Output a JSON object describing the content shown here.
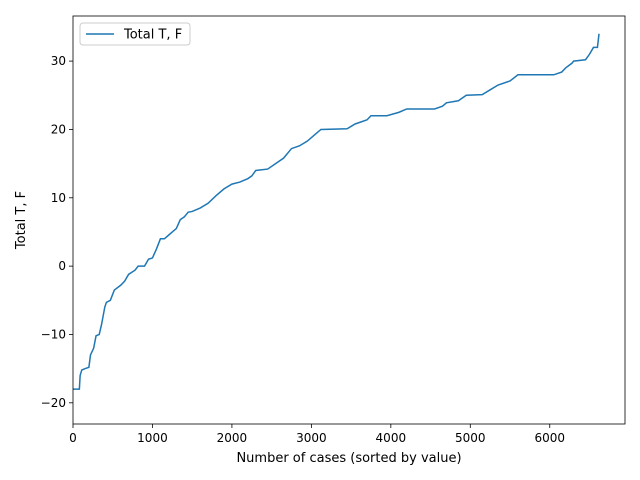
{
  "chart_data": {
    "type": "line",
    "xlabel": "Number of cases (sorted by value)",
    "ylabel": "Total T, F",
    "x": [
      0,
      80,
      90,
      110,
      150,
      200,
      220,
      260,
      290,
      330,
      360,
      400,
      420,
      470,
      520,
      600,
      650,
      700,
      780,
      820,
      900,
      950,
      1000,
      1050,
      1100,
      1150,
      1200,
      1250,
      1300,
      1350,
      1400,
      1450,
      1500,
      1600,
      1700,
      1800,
      1900,
      2000,
      2100,
      2200,
      2250,
      2300,
      2450,
      2550,
      2650,
      2750,
      2850,
      2950,
      3050,
      3120,
      3450,
      3550,
      3700,
      3750,
      3950,
      4100,
      4200,
      4550,
      4650,
      4700,
      4850,
      4950,
      5150,
      5250,
      5350,
      5500,
      5600,
      6050,
      6150,
      6200,
      6280,
      6300,
      6450,
      6500,
      6550,
      6600,
      6610,
      6620
    ],
    "series": [
      {
        "name": "Total T, F",
        "color": "#1f77b4",
        "values": [
          -18,
          -18,
          -16,
          -15.2,
          -15,
          -14.8,
          -13,
          -12,
          -10.2,
          -10,
          -8.5,
          -6,
          -5.3,
          -5,
          -3.5,
          -2.8,
          -2.2,
          -1.2,
          -0.6,
          0,
          0,
          1,
          1.2,
          2.5,
          4,
          4,
          4.5,
          5,
          5.5,
          6.8,
          7.2,
          7.9,
          8,
          8.5,
          9.2,
          10.3,
          11.3,
          12,
          12.3,
          12.8,
          13.2,
          14,
          14.2,
          15,
          15.8,
          17.2,
          17.6,
          18.3,
          19.3,
          20,
          20.1,
          20.8,
          21.4,
          22,
          22,
          22.5,
          23,
          23,
          23.4,
          23.9,
          24.2,
          25,
          25.1,
          25.8,
          26.5,
          27.1,
          28,
          28,
          28.4,
          29,
          29.7,
          30,
          30.2,
          31,
          32,
          32,
          33,
          34
        ]
      }
    ],
    "xlim": [
      0,
      6947
    ],
    "ylim": [
      -23.1,
      36.6
    ],
    "xticks": [
      0,
      1000,
      2000,
      3000,
      4000,
      5000,
      6000
    ],
    "yticks": [
      {
        "value": -20,
        "label": "−20"
      },
      {
        "value": -10,
        "label": "−10"
      },
      0,
      10,
      20,
      30
    ],
    "legend": "upper left",
    "grid": false
  }
}
